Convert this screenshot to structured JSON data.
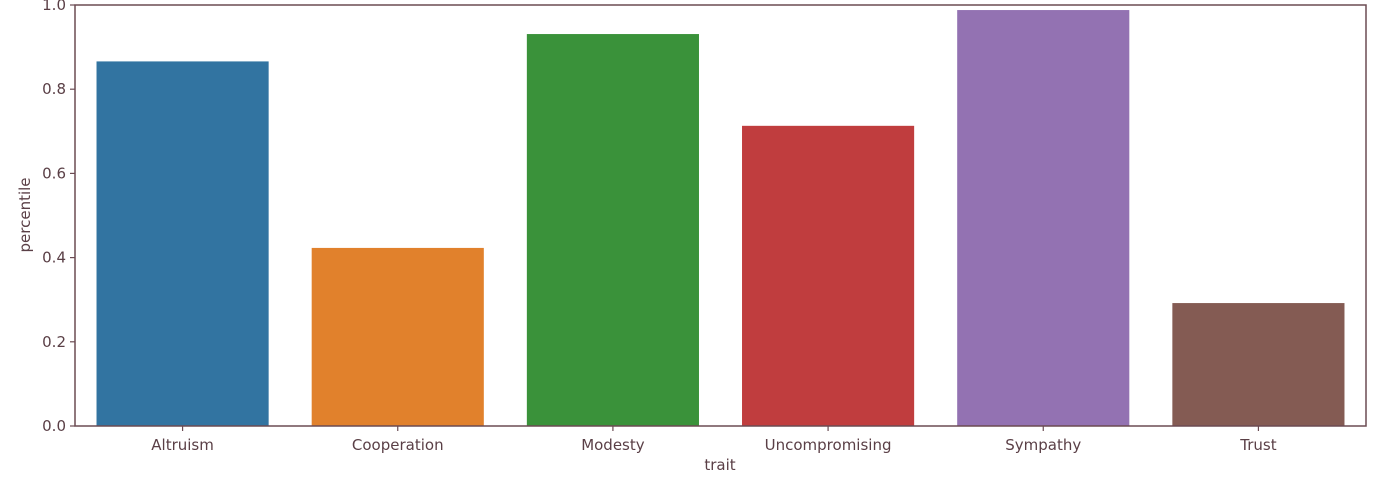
{
  "chart_data": {
    "type": "bar",
    "title": "",
    "xlabel": "trait",
    "ylabel": "percentile",
    "categories": [
      "Altruism",
      "Cooperation",
      "Modesty",
      "Uncompromising",
      "Sympathy",
      "Trust"
    ],
    "values": [
      0.866,
      0.423,
      0.931,
      0.713,
      0.988,
      0.292
    ],
    "colors": [
      "#3274a1",
      "#e1812c",
      "#3a923a",
      "#c03d3e",
      "#9372b2",
      "#845b53"
    ],
    "ylim": [
      0,
      1.0
    ],
    "yticks": [
      0.0,
      0.2,
      0.4,
      0.6,
      0.8,
      1.0
    ],
    "ytick_labels": [
      "0.0",
      "0.2",
      "0.4",
      "0.6",
      "0.8",
      "1.0"
    ],
    "grid": false,
    "legend": "none",
    "axis_color": "#6b4b52",
    "text_color": "#5a3f46"
  }
}
